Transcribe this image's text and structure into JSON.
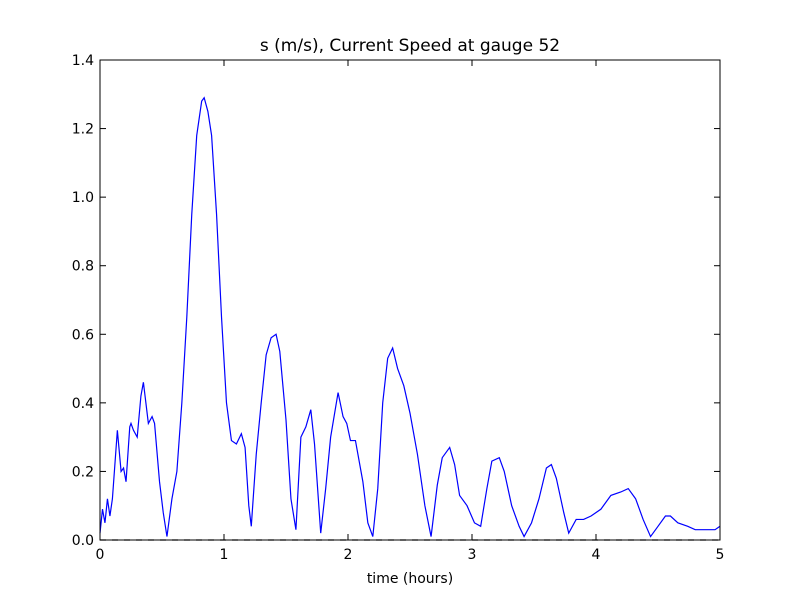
{
  "chart_data": {
    "type": "line",
    "title": "s (m/s), Current Speed at gauge 52",
    "xlabel": "time (hours)",
    "xlim": [
      0,
      5
    ],
    "ylim": [
      0,
      1.4
    ],
    "xticks": [
      0,
      1,
      2,
      3,
      4,
      5
    ],
    "yticks": [
      {
        "value": 0,
        "label": "0.0"
      },
      {
        "value": 0.2,
        "label": "0.2"
      },
      {
        "value": 0.4,
        "label": "0.4"
      },
      {
        "value": 0.6,
        "label": "0.6"
      },
      {
        "value": 0.8,
        "label": "0.8"
      },
      {
        "value": 1.0,
        "label": "1.0"
      },
      {
        "value": 1.2,
        "label": "1.2"
      },
      {
        "value": 1.4,
        "label": "1.4"
      }
    ],
    "grid": false,
    "series": [
      {
        "color": "#0000ff",
        "style": "solid",
        "x": [
          0.0,
          0.02,
          0.04,
          0.06,
          0.08,
          0.1,
          0.14,
          0.17,
          0.19,
          0.21,
          0.24,
          0.25,
          0.27,
          0.3,
          0.33,
          0.35,
          0.37,
          0.39,
          0.42,
          0.44,
          0.48,
          0.51,
          0.54,
          0.58,
          0.62,
          0.66,
          0.7,
          0.74,
          0.78,
          0.82,
          0.84,
          0.87,
          0.9,
          0.94,
          0.98,
          1.02,
          1.06,
          1.1,
          1.14,
          1.17,
          1.2,
          1.22,
          1.26,
          1.3,
          1.34,
          1.38,
          1.42,
          1.45,
          1.5,
          1.54,
          1.58,
          1.62,
          1.66,
          1.7,
          1.73,
          1.78,
          1.82,
          1.86,
          1.92,
          1.96,
          1.99,
          2.02,
          2.06,
          2.12,
          2.16,
          2.2,
          2.24,
          2.28,
          2.32,
          2.36,
          2.4,
          2.45,
          2.5,
          2.56,
          2.62,
          2.67,
          2.72,
          2.76,
          2.82,
          2.86,
          2.9,
          2.96,
          3.02,
          3.07,
          3.12,
          3.16,
          3.22,
          3.26,
          3.32,
          3.38,
          3.42,
          3.48,
          3.54,
          3.6,
          3.64,
          3.68,
          3.74,
          3.78,
          3.84,
          3.9,
          3.96,
          4.04,
          4.12,
          4.2,
          4.26,
          4.32,
          4.38,
          4.44,
          4.5,
          4.56,
          4.6,
          4.66,
          4.74,
          4.8,
          4.9,
          4.96,
          5.0
        ],
        "values": [
          0.02,
          0.09,
          0.05,
          0.12,
          0.07,
          0.12,
          0.32,
          0.2,
          0.21,
          0.17,
          0.33,
          0.34,
          0.32,
          0.3,
          0.42,
          0.46,
          0.4,
          0.34,
          0.36,
          0.34,
          0.17,
          0.08,
          0.01,
          0.12,
          0.2,
          0.4,
          0.65,
          0.95,
          1.18,
          1.28,
          1.29,
          1.25,
          1.18,
          0.95,
          0.65,
          0.4,
          0.29,
          0.28,
          0.31,
          0.27,
          0.1,
          0.04,
          0.25,
          0.4,
          0.54,
          0.59,
          0.6,
          0.55,
          0.35,
          0.12,
          0.03,
          0.3,
          0.33,
          0.38,
          0.28,
          0.02,
          0.15,
          0.3,
          0.43,
          0.36,
          0.34,
          0.29,
          0.29,
          0.17,
          0.05,
          0.01,
          0.15,
          0.4,
          0.53,
          0.56,
          0.5,
          0.45,
          0.37,
          0.25,
          0.1,
          0.01,
          0.16,
          0.24,
          0.27,
          0.22,
          0.13,
          0.1,
          0.05,
          0.04,
          0.15,
          0.23,
          0.24,
          0.2,
          0.1,
          0.04,
          0.01,
          0.05,
          0.12,
          0.21,
          0.22,
          0.18,
          0.08,
          0.02,
          0.06,
          0.06,
          0.07,
          0.09,
          0.13,
          0.14,
          0.15,
          0.12,
          0.06,
          0.01,
          0.04,
          0.07,
          0.07,
          0.05,
          0.04,
          0.03,
          0.03,
          0.03,
          0.04
        ]
      },
      {
        "color": "#000000",
        "style": "dashed",
        "x": [
          0,
          5
        ],
        "values": [
          0,
          0
        ]
      }
    ]
  }
}
